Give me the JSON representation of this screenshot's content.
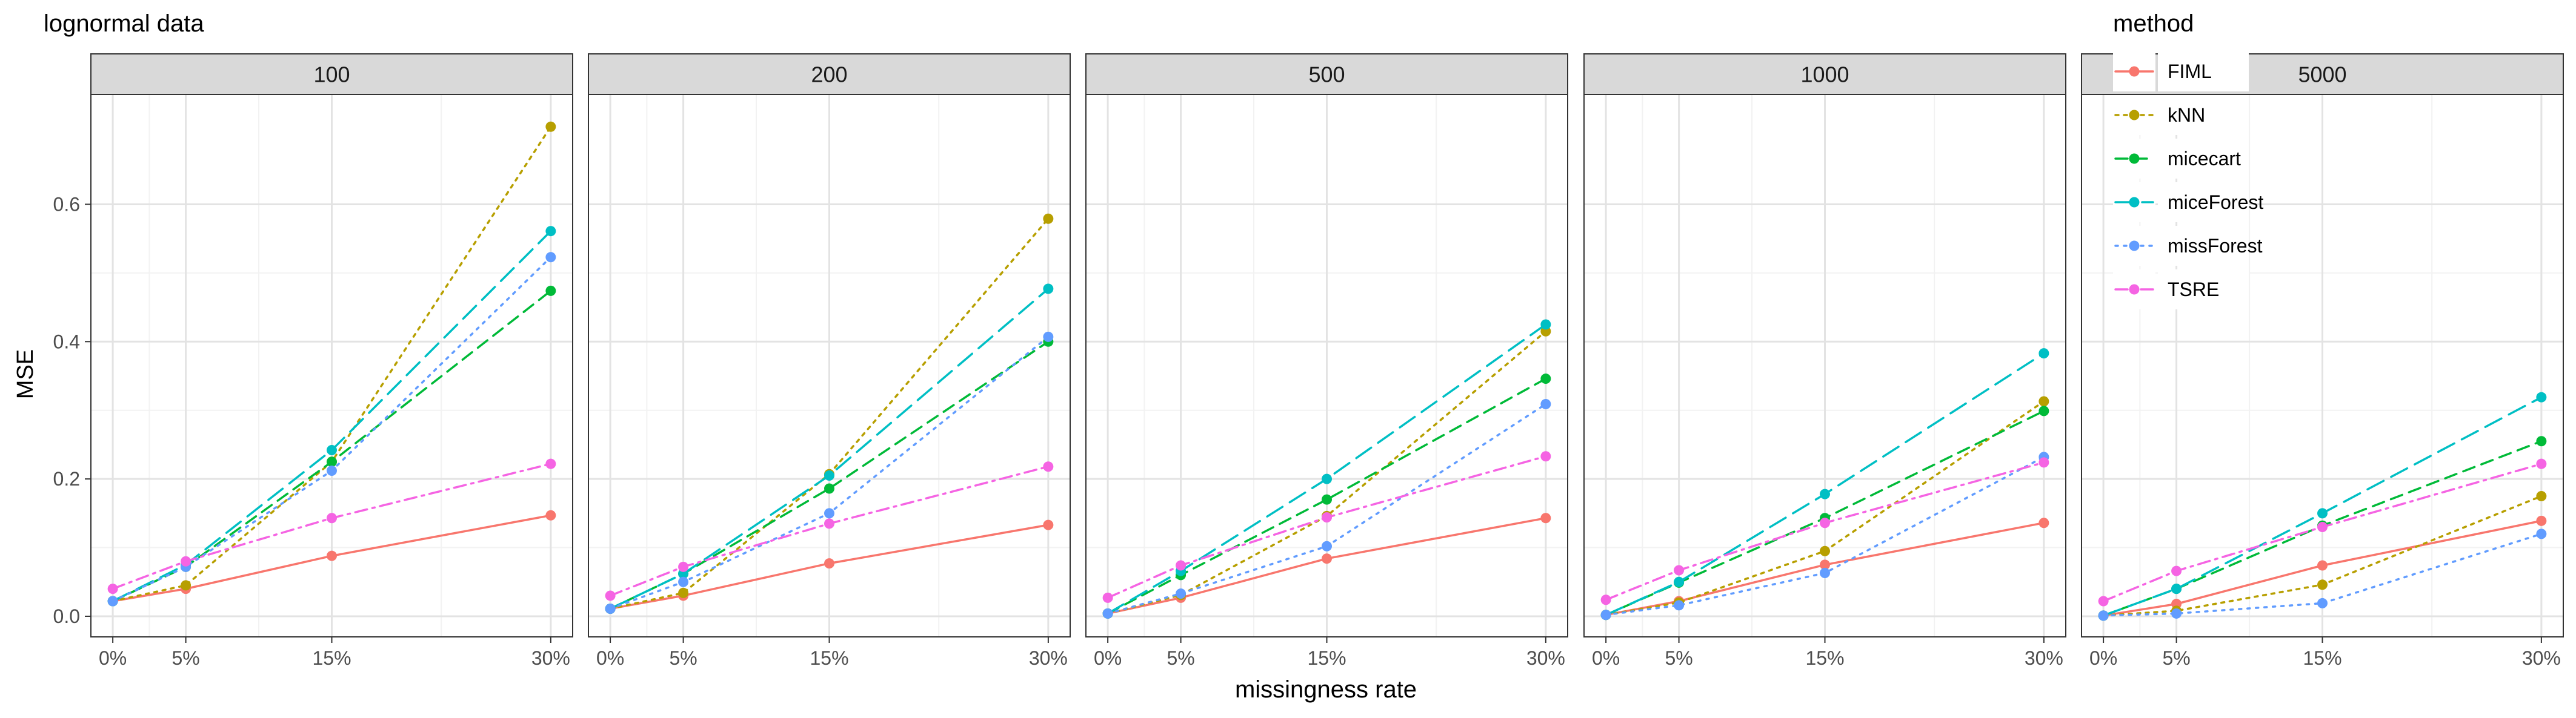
{
  "chart_data": {
    "type": "line",
    "title": "lognormal data",
    "xlabel": "missingness rate",
    "ylabel": "MSE",
    "x": [
      0,
      5,
      15,
      30
    ],
    "x_tick_labels": [
      "0%",
      "5%",
      "15%",
      "30%"
    ],
    "ylim": [
      -0.03,
      0.76
    ],
    "y_ticks": [
      0.0,
      0.2,
      0.4,
      0.6
    ],
    "y_tick_labels": [
      "0.0",
      "0.2",
      "0.4",
      "0.6"
    ],
    "grid": true,
    "legend": {
      "title": "method",
      "position": "top-right"
    },
    "facets": [
      {
        "label": "100",
        "series": [
          {
            "name": "FIML",
            "values": [
              0.022,
              0.04,
              0.088,
              0.147
            ]
          },
          {
            "name": "kNN",
            "values": [
              0.022,
              0.045,
              0.225,
              0.713
            ]
          },
          {
            "name": "micecart",
            "values": [
              0.022,
              0.072,
              0.225,
              0.474
            ]
          },
          {
            "name": "miceForest",
            "values": [
              0.022,
              0.075,
              0.242,
              0.561
            ]
          },
          {
            "name": "missForest",
            "values": [
              0.022,
              0.072,
              0.212,
              0.523
            ]
          },
          {
            "name": "TSRE",
            "values": [
              0.04,
              0.08,
              0.143,
              0.222
            ]
          }
        ]
      },
      {
        "label": "200",
        "series": [
          {
            "name": "FIML",
            "values": [
              0.011,
              0.03,
              0.077,
              0.133
            ]
          },
          {
            "name": "kNN",
            "values": [
              0.011,
              0.034,
              0.207,
              0.579
            ]
          },
          {
            "name": "micecart",
            "values": [
              0.011,
              0.062,
              0.186,
              0.4
            ]
          },
          {
            "name": "miceForest",
            "values": [
              0.011,
              0.062,
              0.205,
              0.477
            ]
          },
          {
            "name": "missForest",
            "values": [
              0.011,
              0.05,
              0.15,
              0.407
            ]
          },
          {
            "name": "TSRE",
            "values": [
              0.03,
              0.072,
              0.135,
              0.218
            ]
          }
        ]
      },
      {
        "label": "500",
        "series": [
          {
            "name": "FIML",
            "values": [
              0.004,
              0.027,
              0.084,
              0.143
            ]
          },
          {
            "name": "kNN",
            "values": [
              0.004,
              0.031,
              0.146,
              0.415
            ]
          },
          {
            "name": "micecart",
            "values": [
              0.004,
              0.06,
              0.17,
              0.346
            ]
          },
          {
            "name": "miceForest",
            "values": [
              0.004,
              0.066,
              0.2,
              0.425
            ]
          },
          {
            "name": "missForest",
            "values": [
              0.004,
              0.033,
              0.102,
              0.309
            ]
          },
          {
            "name": "TSRE",
            "values": [
              0.027,
              0.074,
              0.144,
              0.233
            ]
          }
        ]
      },
      {
        "label": "1000",
        "series": [
          {
            "name": "FIML",
            "values": [
              0.002,
              0.022,
              0.075,
              0.136
            ]
          },
          {
            "name": "kNN",
            "values": [
              0.002,
              0.02,
              0.095,
              0.313
            ]
          },
          {
            "name": "micecart",
            "values": [
              0.002,
              0.049,
              0.143,
              0.299
            ]
          },
          {
            "name": "miceForest",
            "values": [
              0.002,
              0.05,
              0.178,
              0.383
            ]
          },
          {
            "name": "missForest",
            "values": [
              0.002,
              0.016,
              0.063,
              0.232
            ]
          },
          {
            "name": "TSRE",
            "values": [
              0.024,
              0.067,
              0.136,
              0.224
            ]
          }
        ]
      },
      {
        "label": "5000",
        "series": [
          {
            "name": "FIML",
            "values": [
              0.001,
              0.018,
              0.074,
              0.139
            ]
          },
          {
            "name": "kNN",
            "values": [
              0.001,
              0.008,
              0.046,
              0.175
            ]
          },
          {
            "name": "micecart",
            "values": [
              0.001,
              0.04,
              0.132,
              0.255
            ]
          },
          {
            "name": "miceForest",
            "values": [
              0.001,
              0.04,
              0.15,
              0.319
            ]
          },
          {
            "name": "missForest",
            "values": [
              0.001,
              0.004,
              0.019,
              0.12
            ]
          },
          {
            "name": "TSRE",
            "values": [
              0.022,
              0.066,
              0.13,
              0.222
            ]
          }
        ]
      }
    ],
    "series_styles": [
      {
        "name": "FIML",
        "color": "#F8766D",
        "linetype": "solid"
      },
      {
        "name": "kNN",
        "color": "#B79F00",
        "linetype": "dotted"
      },
      {
        "name": "micecart",
        "color": "#00BA38",
        "linetype": "dashed"
      },
      {
        "name": "miceForest",
        "color": "#00BFC4",
        "linetype": "longdash"
      },
      {
        "name": "missForest",
        "color": "#619CFF",
        "linetype": "dotted-fine"
      },
      {
        "name": "TSRE",
        "color": "#F564E3",
        "linetype": "dotdash"
      }
    ]
  }
}
